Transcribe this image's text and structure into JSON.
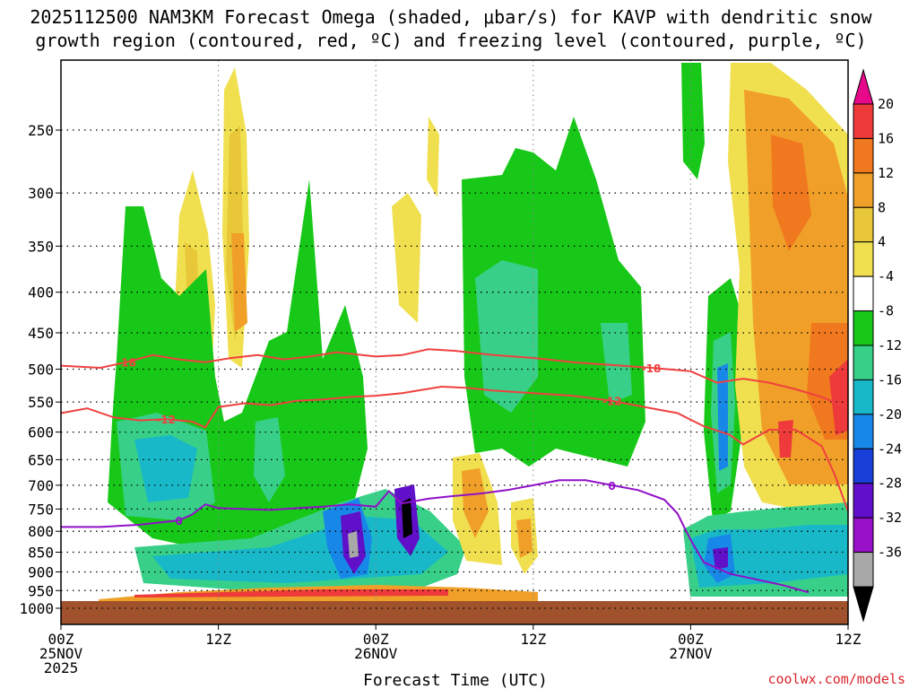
{
  "chart_data": {
    "type": "time-height cross-section",
    "title": [
      "2025112500 NAM3KM Forecast Omega (shaded, μbar/s) for KAVP with dendritic snow",
      "growth region (contoured, red, ºC) and freezing level (contoured, purple, ºC)"
    ],
    "xlabel": "Forecast Time (UTC)",
    "ylabel": "",
    "x_range_hours": [
      0,
      60
    ],
    "y_range_hPa": [
      1000,
      200
    ],
    "y_ticks": [
      250,
      300,
      350,
      400,
      450,
      500,
      550,
      600,
      650,
      700,
      750,
      800,
      850,
      900,
      950,
      1000
    ],
    "x_ticks": [
      {
        "hour": 0,
        "lines": [
          "00Z",
          "25NOV",
          "2025"
        ]
      },
      {
        "hour": 12,
        "lines": [
          "12Z"
        ]
      },
      {
        "hour": 24,
        "lines": [
          "00Z",
          "26NOV"
        ]
      },
      {
        "hour": 36,
        "lines": [
          "12Z"
        ]
      },
      {
        "hour": 48,
        "lines": [
          "00Z",
          "27NOV"
        ]
      },
      {
        "hour": 60,
        "lines": [
          "12Z"
        ]
      }
    ],
    "colorbar": {
      "labels": [
        "20",
        "16",
        "12",
        "8",
        "4",
        "-4",
        "-8",
        "-12",
        "-16",
        "-20",
        "-24",
        "-28",
        "-32",
        "-36"
      ],
      "colors": [
        "#e8088a",
        "#ee3a3a",
        "#f0781e",
        "#f0a028",
        "#e8c838",
        "#f0e050",
        "#ffffff",
        "#18c818",
        "#38d088",
        "#18b8c8",
        "#1888e8",
        "#1840d8",
        "#6010c8",
        "#9810c8",
        "#a8a8a8",
        "#000000"
      ]
    },
    "contours": {
      "dgz_minus18": {
        "label": "-18",
        "points": [
          [
            0,
            495
          ],
          [
            3,
            498
          ],
          [
            5,
            490
          ],
          [
            7,
            480
          ],
          [
            9,
            486
          ],
          [
            11,
            490
          ],
          [
            13,
            484
          ],
          [
            15,
            480
          ],
          [
            17,
            486
          ],
          [
            19,
            482
          ],
          [
            21,
            476
          ],
          [
            24,
            482
          ],
          [
            26,
            480
          ],
          [
            28,
            472
          ],
          [
            30,
            474
          ],
          [
            33,
            480
          ],
          [
            36,
            484
          ],
          [
            39,
            490
          ],
          [
            42,
            494
          ],
          [
            45,
            498
          ],
          [
            48,
            503
          ],
          [
            50,
            520
          ],
          [
            52,
            514
          ],
          [
            54,
            520
          ],
          [
            56,
            530
          ],
          [
            58,
            542
          ],
          [
            60,
            560
          ]
        ]
      },
      "dgz_minus12": {
        "label": "-12",
        "points": [
          [
            0,
            568
          ],
          [
            2,
            560
          ],
          [
            4,
            575
          ],
          [
            6,
            580
          ],
          [
            8,
            578
          ],
          [
            10,
            582
          ],
          [
            11,
            592
          ],
          [
            12,
            558
          ],
          [
            14,
            552
          ],
          [
            16,
            555
          ],
          [
            18,
            548
          ],
          [
            20,
            546
          ],
          [
            22,
            542
          ],
          [
            24,
            540
          ],
          [
            26,
            536
          ],
          [
            29,
            526
          ],
          [
            31,
            528
          ],
          [
            33,
            532
          ],
          [
            36,
            536
          ],
          [
            39,
            540
          ],
          [
            42,
            548
          ],
          [
            45,
            560
          ],
          [
            47,
            568
          ],
          [
            49,
            590
          ],
          [
            51,
            605
          ],
          [
            52,
            622
          ],
          [
            54,
            596
          ],
          [
            56,
            596
          ],
          [
            58,
            625
          ],
          [
            59,
            680
          ],
          [
            60,
            755
          ]
        ]
      },
      "freezing_level": {
        "label": "0",
        "points": [
          [
            0,
            790
          ],
          [
            3,
            790
          ],
          [
            6,
            785
          ],
          [
            9,
            775
          ],
          [
            10,
            762
          ],
          [
            11,
            740
          ],
          [
            12,
            748
          ],
          [
            14,
            750
          ],
          [
            16,
            752
          ],
          [
            18,
            748
          ],
          [
            20,
            745
          ],
          [
            22,
            740
          ],
          [
            24,
            745
          ],
          [
            25,
            712
          ],
          [
            26,
            738
          ],
          [
            28,
            728
          ],
          [
            30,
            722
          ],
          [
            32,
            717
          ],
          [
            34,
            710
          ],
          [
            36,
            700
          ],
          [
            38,
            690
          ],
          [
            40,
            690
          ],
          [
            42,
            700
          ],
          [
            44,
            710
          ],
          [
            46,
            730
          ],
          [
            47,
            760
          ],
          [
            47.5,
            790
          ],
          [
            48,
            820
          ],
          [
            49,
            875
          ],
          [
            51,
            905
          ],
          [
            53,
            920
          ],
          [
            55,
            935
          ],
          [
            57,
            955
          ]
        ]
      }
    },
    "shaded_regions_note": "Omega shading (μbar/s): yellow/orange = positive (sinking), green/cyan/blue/purple = negative (rising)."
  },
  "credit": "coolwx.com/models"
}
